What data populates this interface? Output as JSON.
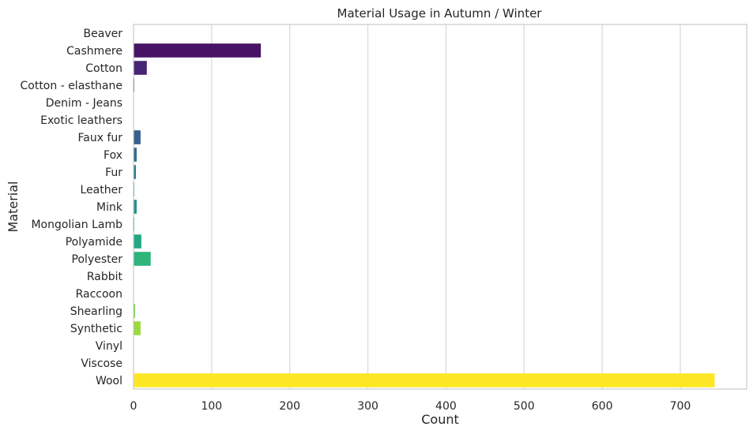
{
  "chart_data": {
    "type": "bar",
    "orientation": "horizontal",
    "title": "Material Usage in Autumn / Winter",
    "xlabel": "Count",
    "ylabel": "Material",
    "xlim": [
      0,
      785
    ],
    "xticks": [
      0,
      100,
      200,
      300,
      400,
      500,
      600,
      700
    ],
    "grid": "x",
    "categories": [
      "Beaver",
      "Cashmere",
      "Cotton",
      "Cotton - elasthane",
      "Denim - Jeans",
      "Exotic leathers",
      "Faux fur",
      "Fox",
      "Fur",
      "Leather",
      "Mink",
      "Mongolian Lamb",
      "Polyamide",
      "Polyester",
      "Rabbit",
      "Raccoon",
      "Shearling",
      "Synthetic",
      "Vinyl",
      "Viscose",
      "Wool"
    ],
    "values": [
      0,
      163,
      17,
      1,
      0,
      0,
      9,
      4,
      3,
      1,
      4,
      1,
      10,
      22,
      0,
      0,
      2,
      9,
      0,
      0,
      744
    ],
    "colors": [
      "#440154",
      "#471365",
      "#482475",
      "#463480",
      "#414487",
      "#3b528b",
      "#355f8d",
      "#2f6c8e",
      "#2a788e",
      "#25848e",
      "#21918c",
      "#1e9c89",
      "#22a884",
      "#2fb47c",
      "#44bf70",
      "#5ec962",
      "#7ad151",
      "#9bd93c",
      "#bddf26",
      "#dfe318",
      "#fde725"
    ]
  }
}
